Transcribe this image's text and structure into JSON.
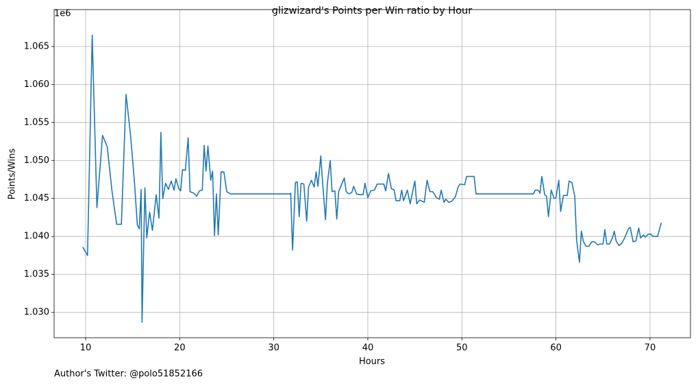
{
  "chart_data": {
    "type": "line",
    "title": "glizwizard's Points per Win ratio by Hour",
    "x_label": "Hours",
    "y_label": "Points/Wins",
    "y_offset_label": "1e6",
    "footnote": "Author's Twitter: @polo51852166",
    "color": "#1f77b4",
    "grid": true,
    "xlim": [
      6.65,
      74.3
    ],
    "ylim": [
      1.02667,
      1.06986
    ],
    "xticks": [
      10,
      20,
      30,
      40,
      50,
      60,
      70
    ],
    "yticks": [
      {
        "value": 1.03,
        "label": "1.030"
      },
      {
        "value": 1.035,
        "label": "1.035"
      },
      {
        "value": 1.04,
        "label": "1.040"
      },
      {
        "value": 1.045,
        "label": "1.045"
      },
      {
        "value": 1.05,
        "label": "1.050"
      },
      {
        "value": 1.055,
        "label": "1.055"
      },
      {
        "value": 1.06,
        "label": "1.060"
      },
      {
        "value": 1.065,
        "label": "1.065"
      }
    ],
    "x": [
      9.7,
      10.2,
      10.7,
      11.2,
      11.8,
      12.3,
      12.8,
      13.3,
      13.8,
      14.3,
      14.8,
      15.2,
      15.5,
      15.7,
      15.9,
      16.0,
      16.3,
      16.5,
      16.8,
      17.1,
      17.5,
      17.8,
      18.0,
      18.2,
      18.5,
      18.8,
      19.1,
      19.4,
      19.6,
      19.9,
      20.1,
      20.3,
      20.6,
      20.9,
      21.1,
      21.5,
      21.8,
      22.1,
      22.4,
      22.6,
      22.8,
      23.0,
      23.3,
      23.5,
      23.7,
      23.9,
      24.1,
      24.4,
      24.7,
      25.0,
      25.4,
      31.7,
      31.8,
      32.0,
      32.3,
      32.5,
      32.7,
      32.9,
      33.2,
      33.5,
      33.7,
      34.0,
      34.3,
      34.5,
      34.7,
      35.0,
      35.2,
      35.5,
      35.7,
      36.0,
      36.2,
      36.5,
      36.7,
      36.9,
      37.5,
      37.7,
      38.0,
      38.3,
      38.5,
      38.8,
      39.1,
      39.5,
      39.7,
      40.0,
      40.3,
      40.7,
      41.0,
      41.7,
      41.9,
      42.2,
      42.5,
      42.8,
      43.0,
      43.4,
      43.6,
      43.8,
      44.2,
      44.5,
      45.0,
      45.2,
      45.5,
      46.0,
      46.3,
      46.6,
      46.9,
      47.3,
      47.6,
      47.8,
      48.1,
      48.3,
      48.6,
      48.9,
      49.3,
      49.6,
      49.8,
      50.3,
      50.5,
      51.3,
      51.5,
      57.6,
      57.8,
      58.1,
      58.3,
      58.5,
      58.8,
      59.0,
      59.2,
      59.5,
      59.8,
      60.0,
      60.3,
      60.5,
      60.8,
      61.2,
      61.4,
      61.7,
      62.0,
      62.2,
      62.5,
      62.7,
      62.9,
      63.2,
      63.5,
      63.8,
      64.1,
      64.4,
      64.7,
      65.0,
      65.2,
      65.4,
      65.7,
      66.0,
      66.2,
      66.4,
      66.7,
      67.0,
      67.3,
      67.7,
      67.9,
      68.2,
      68.5,
      68.8,
      69.0,
      69.3,
      69.5,
      69.8,
      70.1,
      70.3,
      70.8,
      71.2
    ],
    "values": [
      1.0386,
      1.0375,
      1.0665,
      1.0438,
      1.0533,
      1.0518,
      1.046,
      1.0416,
      1.0416,
      1.0587,
      1.053,
      1.047,
      1.0415,
      1.041,
      1.0462,
      1.0287,
      1.0464,
      1.0398,
      1.0432,
      1.0408,
      1.0455,
      1.0424,
      1.0537,
      1.045,
      1.047,
      1.0462,
      1.0473,
      1.0461,
      1.0476,
      1.0463,
      1.046,
      1.0488,
      1.0487,
      1.053,
      1.0459,
      1.0457,
      1.0453,
      1.046,
      1.0461,
      1.052,
      1.0486,
      1.0519,
      1.0474,
      1.0486,
      1.0401,
      1.0456,
      1.0402,
      1.0485,
      1.0485,
      1.0459,
      1.0456,
      1.0456,
      1.0457,
      1.0382,
      1.0471,
      1.0472,
      1.0426,
      1.047,
      1.0469,
      1.042,
      1.0465,
      1.0474,
      1.0465,
      1.0485,
      1.0466,
      1.0506,
      1.047,
      1.0422,
      1.047,
      1.05,
      1.0459,
      1.046,
      1.0423,
      1.0459,
      1.0477,
      1.0459,
      1.0456,
      1.0458,
      1.0466,
      1.0456,
      1.0455,
      1.0455,
      1.047,
      1.0451,
      1.046,
      1.0461,
      1.0469,
      1.0469,
      1.046,
      1.0483,
      1.0463,
      1.0461,
      1.0447,
      1.0447,
      1.0461,
      1.0447,
      1.0461,
      1.0443,
      1.0473,
      1.0443,
      1.0448,
      1.0445,
      1.0474,
      1.0459,
      1.0459,
      1.0451,
      1.0449,
      1.0461,
      1.0445,
      1.0449,
      1.0445,
      1.0446,
      1.0452,
      1.0465,
      1.0469,
      1.0468,
      1.0479,
      1.0479,
      1.0456,
      1.0456,
      1.0461,
      1.0461,
      1.0457,
      1.0479,
      1.0455,
      1.0453,
      1.0426,
      1.0461,
      1.045,
      1.0451,
      1.0474,
      1.0433,
      1.0454,
      1.0454,
      1.0473,
      1.0471,
      1.0453,
      1.0395,
      1.0366,
      1.0407,
      1.0394,
      1.0387,
      1.0387,
      1.0393,
      1.0393,
      1.0389,
      1.039,
      1.039,
      1.0409,
      1.039,
      1.039,
      1.0398,
      1.0407,
      1.0394,
      1.0388,
      1.0391,
      1.0398,
      1.041,
      1.0412,
      1.0393,
      1.0394,
      1.0411,
      1.0398,
      1.0402,
      1.0399,
      1.0403,
      1.0403,
      1.04,
      1.04,
      1.0418
    ]
  }
}
